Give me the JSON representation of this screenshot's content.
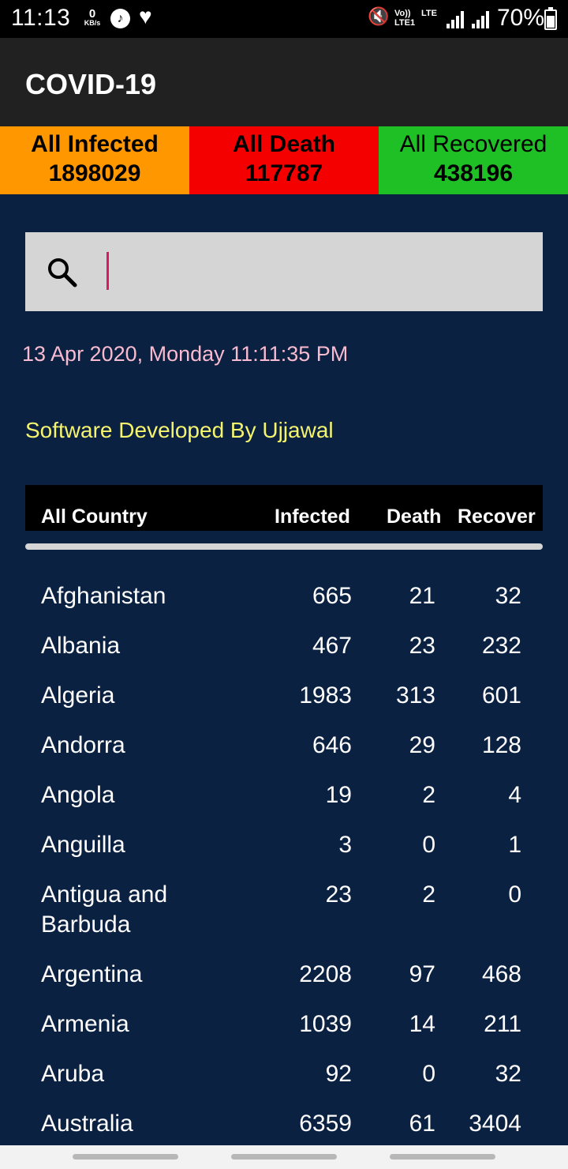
{
  "status_bar": {
    "time": "11:13",
    "net_speed_value": "0",
    "net_speed_unit": "KB/s",
    "volte_label": "Vo)) LTE1",
    "lte_label": "LTE",
    "battery": "70%",
    "icons": [
      "music-icon",
      "heart-check-icon",
      "mute-icon",
      "signal-icon",
      "battery-icon"
    ]
  },
  "app_bar": {
    "title": "COVID-19"
  },
  "summary": {
    "infected_label": "All Infected",
    "infected_value": "1898029",
    "death_label": "All Death",
    "death_value": "117787",
    "recovered_label": "All Recovered",
    "recovered_value": "438196",
    "colors": {
      "infected": "#ff9800",
      "death": "#f50000",
      "recovered": "#1fbf26"
    }
  },
  "search": {
    "value": "",
    "placeholder": ""
  },
  "date_text": "13 Apr 2020, Monday 11:11:35 PM",
  "developer_text": "Software Developed By Ujjawal",
  "table": {
    "headers": {
      "country": "All Country",
      "infected": "Infected",
      "death": "Death",
      "recover": "Recover"
    },
    "rows": [
      {
        "name": "Afghanistan",
        "infected": "665",
        "death": "21",
        "recovered": "32"
      },
      {
        "name": "Albania",
        "infected": "467",
        "death": "23",
        "recovered": "232"
      },
      {
        "name": "Algeria",
        "infected": "1983",
        "death": "313",
        "recovered": "601"
      },
      {
        "name": "Andorra",
        "infected": "646",
        "death": "29",
        "recovered": "128"
      },
      {
        "name": "Angola",
        "infected": "19",
        "death": "2",
        "recovered": "4"
      },
      {
        "name": "Anguilla",
        "infected": "3",
        "death": "0",
        "recovered": "1"
      },
      {
        "name": "Antigua and Barbuda",
        "infected": "23",
        "death": "2",
        "recovered": "0"
      },
      {
        "name": "Argentina",
        "infected": "2208",
        "death": "97",
        "recovered": "468"
      },
      {
        "name": "Armenia",
        "infected": "1039",
        "death": "14",
        "recovered": "211"
      },
      {
        "name": "Aruba",
        "infected": "92",
        "death": "0",
        "recovered": "32"
      },
      {
        "name": "Australia",
        "infected": "6359",
        "death": "61",
        "recovered": "3404"
      }
    ]
  }
}
